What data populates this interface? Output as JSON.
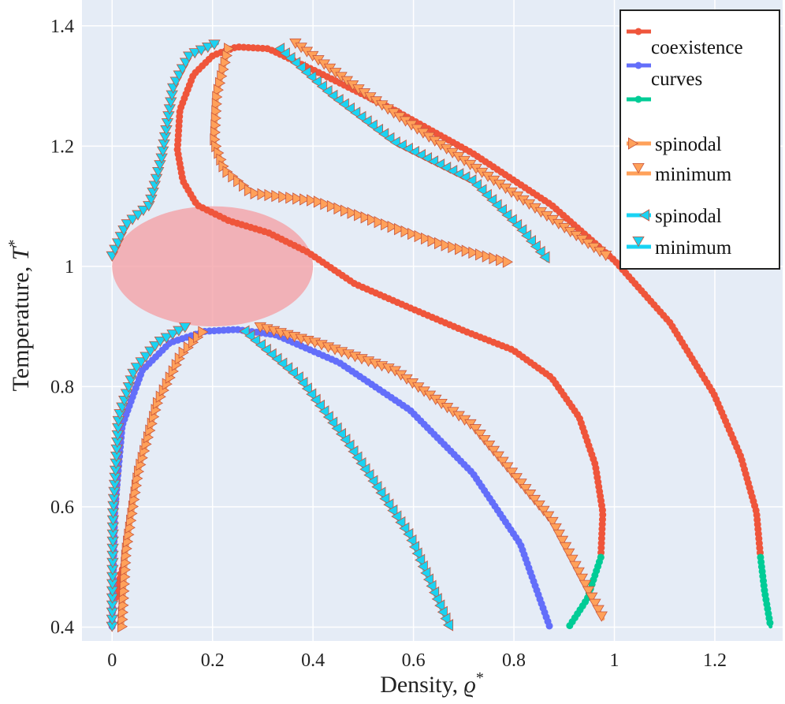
{
  "chart_data": {
    "type": "line",
    "xlabel": "Density, ",
    "xlabel_symbol": "ϱ",
    "ylabel": "Temperature, ",
    "ylabel_symbol": "T",
    "label_superscript": "*",
    "xlim": [
      -0.06,
      1.335
    ],
    "ylim": [
      0.377,
      1.443
    ],
    "xticks": [
      0,
      0.2,
      0.4,
      0.6,
      0.8,
      1,
      1.2
    ],
    "xtick_labels": [
      "0",
      "0.2",
      "0.4",
      "0.6",
      "0.8",
      "1",
      "1.2"
    ],
    "yticks": [
      0.4,
      0.6,
      0.8,
      1,
      1.2,
      1.4
    ],
    "ytick_labels": [
      "0.4",
      "0.6",
      "0.8",
      "1",
      "1.2",
      "1.4"
    ],
    "grid": true,
    "background": "#E5ECF6",
    "legend_placement": "top-right",
    "legend": {
      "coexistence_label_line1": "coexistence",
      "coexistence_label_line2": "curves",
      "entries": [
        {
          "label": "",
          "color": "#EF553B",
          "marker": "circle"
        },
        {
          "label": "",
          "color": "#636EFA",
          "marker": "circle"
        },
        {
          "label": "",
          "color": "#00CC96",
          "marker": "circle"
        },
        {
          "label": "spinodal",
          "color": "#FFA15A",
          "marker": "triangle-right"
        },
        {
          "label": "minimum",
          "color": "#FFA15A",
          "marker": "triangle-down"
        },
        {
          "label": "spinodal",
          "color": "#19D3F3",
          "marker": "triangle-left"
        },
        {
          "label": "minimum",
          "color": "#19D3F3",
          "marker": "triangle-down"
        }
      ]
    },
    "series": [
      {
        "color": "#EF553B",
        "marker": "circle",
        "segments": [
          [
            [
              0.973,
              0.516
            ],
            [
              0.977,
              0.591
            ],
            [
              0.962,
              0.67
            ],
            [
              0.93,
              0.749
            ],
            [
              0.875,
              0.815
            ],
            [
              0.798,
              0.861
            ],
            [
              0.703,
              0.892
            ],
            [
              0.593,
              0.931
            ],
            [
              0.483,
              0.971
            ],
            [
              0.389,
              1.024
            ],
            [
              0.311,
              1.056
            ],
            [
              0.232,
              1.076
            ],
            [
              0.169,
              1.102
            ],
            [
              0.141,
              1.142
            ],
            [
              0.13,
              1.194
            ],
            [
              0.135,
              1.26
            ],
            [
              0.162,
              1.319
            ],
            [
              0.201,
              1.351
            ],
            [
              0.248,
              1.365
            ],
            [
              0.311,
              1.362
            ],
            [
              0.405,
              1.325
            ],
            [
              0.562,
              1.26
            ],
            [
              0.718,
              1.188
            ],
            [
              0.875,
              1.102
            ],
            [
              1.0,
              1.01
            ],
            [
              1.111,
              0.906
            ],
            [
              1.198,
              0.788
            ],
            [
              1.252,
              0.683
            ],
            [
              1.283,
              0.591
            ],
            [
              1.291,
              0.516
            ]
          ],
          [
            [
              0.008,
              0.45
            ],
            [
              0.018,
              0.49
            ],
            [
              0.026,
              0.51
            ]
          ]
        ]
      },
      {
        "color": "#636EFA",
        "marker": "circle",
        "segments": [
          [
            [
              0,
              0.401
            ],
            [
              0.005,
              0.591
            ],
            [
              0.02,
              0.735
            ],
            [
              0.06,
              0.827
            ],
            [
              0.115,
              0.873
            ],
            [
              0.185,
              0.892
            ],
            [
              0.248,
              0.895
            ],
            [
              0.326,
              0.886
            ],
            [
              0.452,
              0.84
            ],
            [
              0.593,
              0.761
            ],
            [
              0.718,
              0.656
            ],
            [
              0.813,
              0.538
            ],
            [
              0.871,
              0.401
            ]
          ]
        ]
      },
      {
        "color": "#00CC96",
        "marker": "circle",
        "segments": [
          [
            [
              1.291,
              0.516
            ],
            [
              1.299,
              0.46
            ],
            [
              1.311,
              0.401
            ]
          ],
          [
            [
              0.973,
              0.516
            ],
            [
              0.946,
              0.447
            ],
            [
              0.91,
              0.401
            ]
          ]
        ]
      },
      {
        "color": "#FFA15A",
        "marker": "triangle-right",
        "segments": [
          [
            [
              0.232,
              1.362
            ],
            [
              0.209,
              1.286
            ],
            [
              0.204,
              1.207
            ],
            [
              0.224,
              1.161
            ],
            [
              0.279,
              1.122
            ],
            [
              0.405,
              1.109
            ],
            [
              0.499,
              1.083
            ],
            [
              0.656,
              1.037
            ],
            [
              0.789,
              1.007
            ]
          ],
          [
            [
              0.02,
              0.401
            ],
            [
              0.028,
              0.525
            ],
            [
              0.052,
              0.656
            ],
            [
              0.091,
              0.774
            ],
            [
              0.138,
              0.853
            ],
            [
              0.182,
              0.892
            ]
          ]
        ]
      },
      {
        "color": "#FFA15A",
        "marker": "triangle-down",
        "segments": [
          [
            [
              0.365,
              1.371
            ],
            [
              0.483,
              1.299
            ],
            [
              0.656,
              1.201
            ],
            [
              0.844,
              1.096
            ],
            [
              0.985,
              1.017
            ]
          ],
          [
            [
              0.295,
              0.899
            ],
            [
              0.405,
              0.873
            ],
            [
              0.562,
              0.827
            ],
            [
              0.718,
              0.735
            ],
            [
              0.875,
              0.578
            ],
            [
              0.977,
              0.414
            ]
          ]
        ]
      },
      {
        "color": "#19D3F3",
        "marker": "triangle-left",
        "segments": [
          [
            [
              0.334,
              1.362
            ],
            [
              0.436,
              1.286
            ],
            [
              0.562,
              1.207
            ],
            [
              0.718,
              1.142
            ],
            [
              0.813,
              1.063
            ],
            [
              0.867,
              1.01
            ]
          ],
          [
            [
              0.264,
              0.892
            ],
            [
              0.373,
              0.814
            ],
            [
              0.467,
              0.709
            ],
            [
              0.593,
              0.551
            ],
            [
              0.671,
              0.401
            ]
          ]
        ]
      },
      {
        "color": "#19D3F3",
        "marker": "triangle-down",
        "segments": [
          [
            [
              0,
              1.017
            ],
            [
              0.028,
              1.069
            ],
            [
              0.075,
              1.102
            ],
            [
              0.099,
              1.181
            ],
            [
              0.122,
              1.299
            ],
            [
              0.154,
              1.351
            ],
            [
              0.209,
              1.371
            ]
          ],
          [
            [
              0,
              0.401
            ],
            [
              0.002,
              0.591
            ],
            [
              0.013,
              0.748
            ],
            [
              0.044,
              0.827
            ],
            [
              0.091,
              0.873
            ],
            [
              0.146,
              0.899
            ]
          ]
        ]
      }
    ],
    "annotations": [
      {
        "type": "ellipse",
        "cx": 0.2,
        "cy": 1.0,
        "rx": 0.2,
        "ry": 0.1,
        "color": "#F4A3A8"
      }
    ]
  }
}
